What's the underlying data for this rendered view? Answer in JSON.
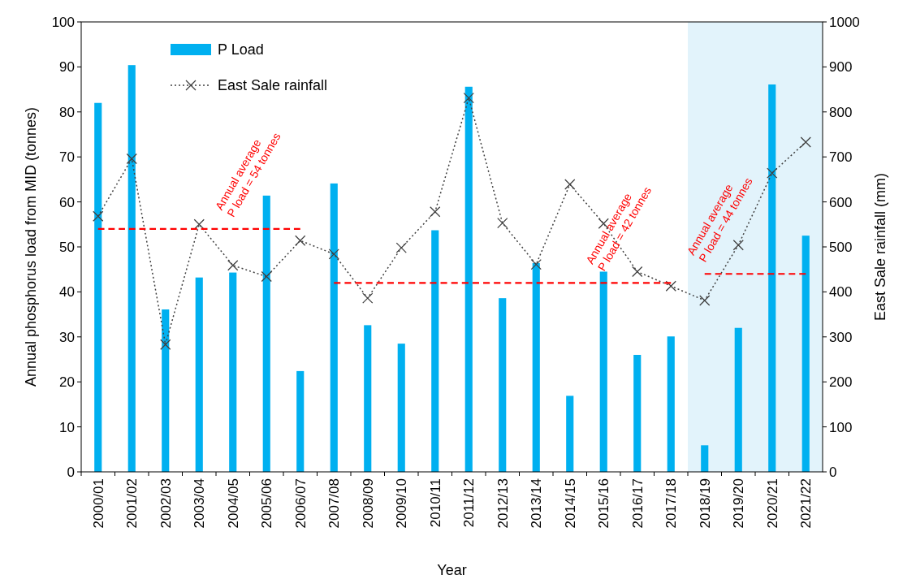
{
  "chart_data": {
    "type": "bar",
    "xlabel": "Year",
    "ylabel": "Annual phosphorus load from MID (tonnes)",
    "y2label": "East Sale rainfall (mm)",
    "categories": [
      "2000/01",
      "2001/02",
      "2002/03",
      "2003/04",
      "2004/05",
      "2005/06",
      "2006/07",
      "2007/08",
      "2008/09",
      "2009/10",
      "2010/11",
      "2011/12",
      "2012/13",
      "2013/14",
      "2014/15",
      "2015/16",
      "2016/17",
      "2017/18",
      "2018/19",
      "2019/20",
      "2020/21",
      "2021/22"
    ],
    "series": [
      {
        "name": "P Load",
        "color": "#00b0f0",
        "values": [
          82,
          90.4,
          36.1,
          43.2,
          44.3,
          61.4,
          22.4,
          64.1,
          32.6,
          28.5,
          53.7,
          85.6,
          38.6,
          46.4,
          16.9,
          44.5,
          26,
          30.1,
          5.9,
          32,
          86.1,
          52.5
        ]
      },
      {
        "name": "East Sale rainfall",
        "type": "line",
        "axis": "y2",
        "color": "#404040",
        "marker": "cross",
        "line_style": "dotted",
        "values": [
          568,
          696,
          283,
          550,
          459,
          434,
          514,
          484,
          386,
          498,
          578,
          831,
          553,
          461,
          639,
          552,
          445,
          413,
          381,
          504,
          664,
          733
        ]
      },
      {
        "type": "line",
        "color": "#ff0000",
        "marker": "none",
        "line_style": "dashed",
        "values": [
          54,
          54,
          54,
          54,
          54,
          54,
          54,
          null,
          null,
          null,
          null,
          null,
          null,
          null,
          null,
          null,
          null,
          null,
          null,
          null,
          null,
          null
        ]
      },
      {
        "type": "line",
        "color": "#ff0000",
        "marker": "none",
        "line_style": "dashed",
        "values": [
          null,
          null,
          null,
          null,
          null,
          null,
          null,
          42,
          42,
          42,
          42,
          42,
          42,
          42,
          42,
          42,
          42,
          42,
          null,
          null,
          null,
          null
        ]
      },
      {
        "type": "line",
        "color": "#ff0000",
        "marker": "none",
        "line_style": "dashed",
        "values": [
          null,
          null,
          null,
          null,
          null,
          null,
          null,
          null,
          null,
          null,
          null,
          null,
          null,
          null,
          null,
          null,
          null,
          null,
          44,
          44,
          44,
          44
        ]
      }
    ],
    "annotations": [
      {
        "text": "Annual average\nP load = 54 tonnes",
        "x": "2004/05",
        "y": 54
      },
      {
        "text": "Annual average\nP load = 42 tonnes",
        "x": "2015/16",
        "y": 42
      },
      {
        "text": "Annual average\nP load = 44 tonnes",
        "x": "2018/19",
        "y": 44
      }
    ],
    "bands": [
      {
        "axis": "x",
        "from": "2018/19",
        "to": "2021/22",
        "color": "#e2f3fb"
      }
    ],
    "ylim": [
      0,
      100
    ],
    "yticks": [
      0,
      10,
      20,
      30,
      40,
      50,
      60,
      70,
      80,
      90,
      100
    ],
    "y2lim": [
      0,
      1000
    ],
    "y2ticks": [
      0,
      100,
      200,
      300,
      400,
      500,
      600,
      700,
      800,
      900,
      1000
    ],
    "legend": "top left",
    "grid": false
  }
}
